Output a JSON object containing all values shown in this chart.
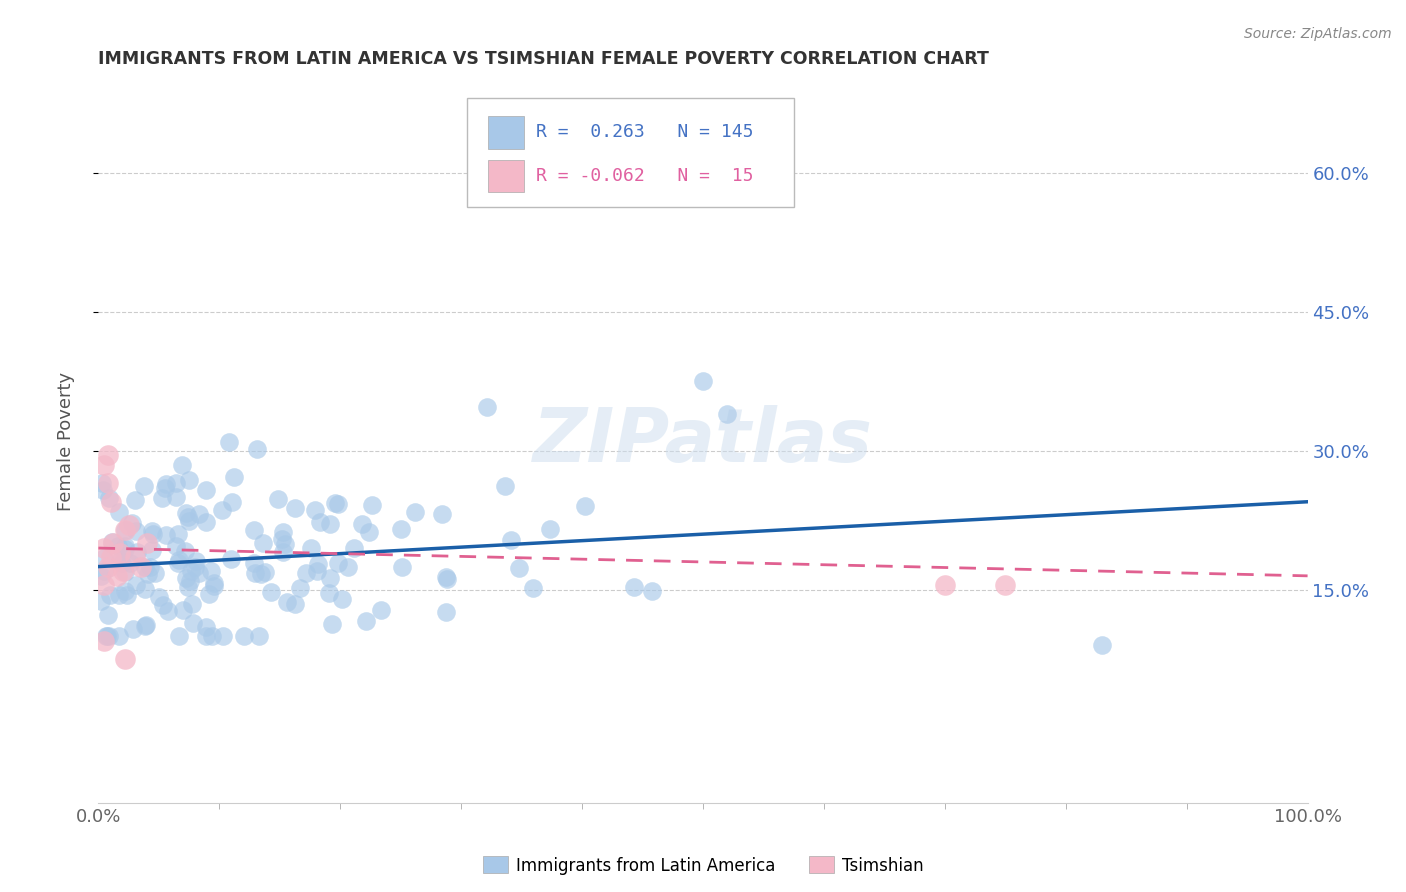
{
  "title": "IMMIGRANTS FROM LATIN AMERICA VS TSIMSHIAN FEMALE POVERTY CORRELATION CHART",
  "source": "Source: ZipAtlas.com",
  "ylabel": "Female Poverty",
  "xlim": [
    0.0,
    1.0
  ],
  "ylim": [
    -0.08,
    0.7
  ],
  "x_tick_labels": [
    "0.0%",
    "100.0%"
  ],
  "y_ticks": [
    0.15,
    0.3,
    0.45,
    0.6
  ],
  "y_tick_labels": [
    "15.0%",
    "30.0%",
    "45.0%",
    "60.0%"
  ],
  "legend_labels": [
    "Immigrants from Latin America",
    "Tsimshian"
  ],
  "legend_R1": "0.263",
  "legend_N1": "145",
  "legend_R2": "-0.062",
  "legend_N2": "15",
  "blue_color": "#a8c8e8",
  "pink_color": "#f4b8c8",
  "blue_line_color": "#1a5fa8",
  "pink_line_color": "#e06090",
  "watermark": "ZIPatlas",
  "blue_trend_x0": 0.0,
  "blue_trend_y0": 0.175,
  "blue_trend_x1": 1.0,
  "blue_trend_y1": 0.245,
  "pink_trend_x0": 0.0,
  "pink_trend_y0": 0.195,
  "pink_trend_x1": 1.0,
  "pink_trend_y1": 0.165
}
